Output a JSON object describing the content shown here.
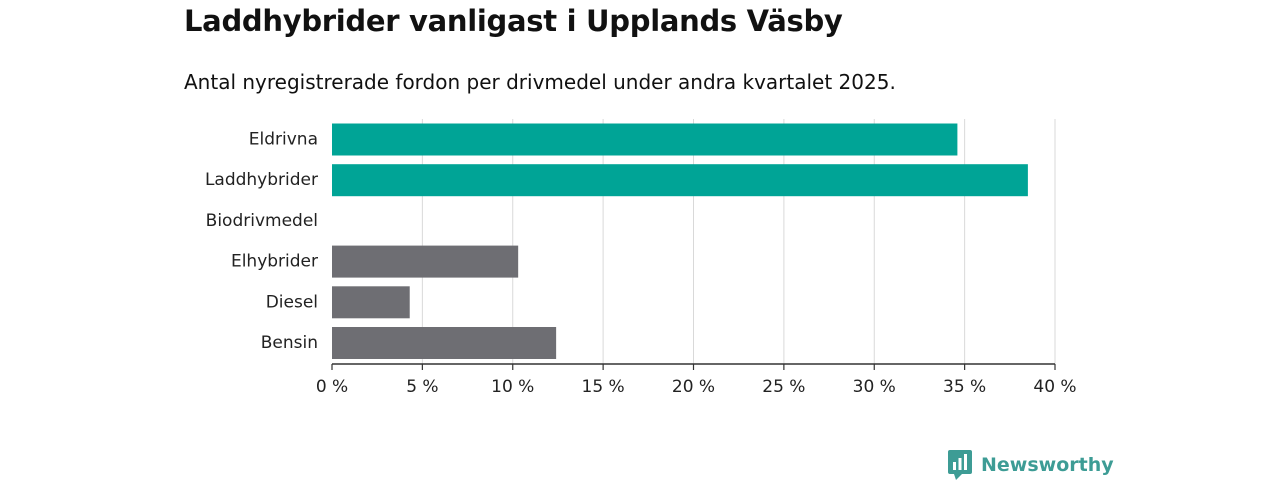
{
  "title": "Laddhybrider vanligast i Upplands Väsby",
  "subtitle": "Antal nyregistrerade fordon per drivmedel under andra kvartalet 2025.",
  "brand": {
    "name": "Newsworthy",
    "icon": "newsworthy-logo-icon"
  },
  "colors": {
    "highlight": "#00a496",
    "default": "#6e6e73",
    "grid": "#d9d9d9",
    "axis": "#333333",
    "brand": "#3d9c95"
  },
  "chart_data": {
    "type": "bar",
    "orientation": "horizontal",
    "title": "Laddhybrider vanligast i Upplands Väsby",
    "subtitle": "Antal nyregistrerade fordon per drivmedel under andra kvartalet 2025.",
    "categories": [
      "Eldrivna",
      "Laddhybrider",
      "Biodrivmedel",
      "Elhybrider",
      "Diesel",
      "Bensin"
    ],
    "values": [
      34.6,
      38.5,
      0,
      10.3,
      4.3,
      12.4
    ],
    "highlight": [
      true,
      true,
      false,
      false,
      false,
      false
    ],
    "unit": "%",
    "xlim": [
      0,
      40
    ],
    "xticks": [
      0,
      5,
      10,
      15,
      20,
      25,
      30,
      35,
      40
    ],
    "xtick_labels": [
      "0 %",
      "5 %",
      "10 %",
      "15 %",
      "20 %",
      "25 %",
      "30 %",
      "35 %",
      "40 %"
    ],
    "xlabel": "",
    "ylabel": "",
    "grid": true,
    "legend": "none"
  }
}
